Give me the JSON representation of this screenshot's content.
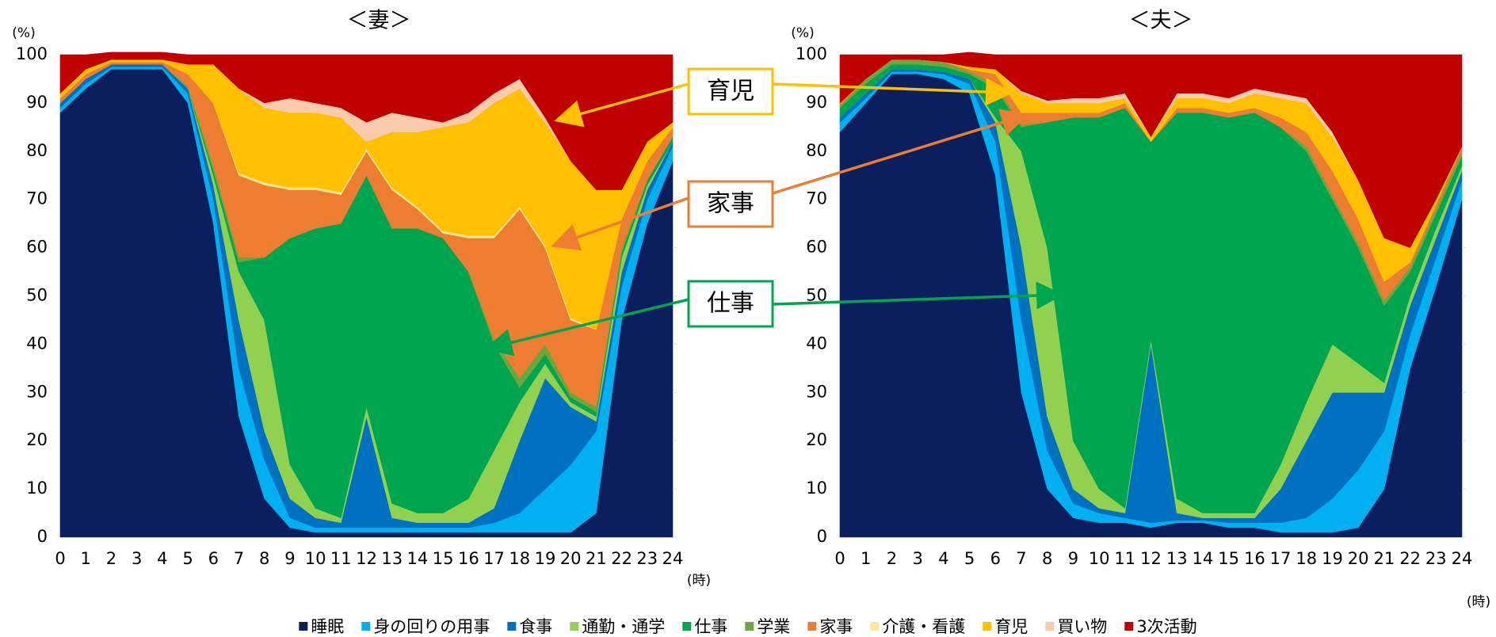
{
  "chart_data": [
    {
      "type": "stacked-area",
      "title": "＜妻＞",
      "ylabel": "(%)",
      "xlabel": "(時)",
      "x": [
        0,
        1,
        2,
        3,
        4,
        5,
        6,
        7,
        8,
        9,
        10,
        11,
        12,
        13,
        14,
        15,
        16,
        17,
        18,
        19,
        20,
        21,
        22,
        23,
        24
      ],
      "xlim": [
        0,
        24
      ],
      "xticks": [
        0,
        1,
        2,
        3,
        4,
        5,
        6,
        7,
        8,
        9,
        10,
        11,
        12,
        13,
        14,
        15,
        16,
        17,
        18,
        19,
        20,
        21,
        22,
        23,
        24
      ],
      "ylim": [
        0,
        100
      ],
      "yticks": [
        0,
        10,
        20,
        30,
        40,
        50,
        60,
        70,
        80,
        90,
        100
      ],
      "grid": false,
      "annotations": [
        "育児",
        "家事",
        "仕事"
      ],
      "series": [
        {
          "name": "睡眠",
          "color": "#0b1f5e",
          "values": [
            88,
            93,
            97,
            97,
            97,
            90,
            65,
            25,
            8,
            2,
            1,
            1,
            1,
            1,
            1,
            1,
            1,
            1,
            1,
            1,
            1,
            5,
            45,
            65,
            78
          ]
        },
        {
          "name": "身の回りの用事",
          "color": "#00b0f0",
          "values": [
            1,
            1,
            0.5,
            0.5,
            0.5,
            2,
            5,
            10,
            8,
            2,
            1,
            1,
            1,
            1,
            1,
            1,
            1,
            2,
            4,
            9,
            14,
            17,
            7,
            5,
            3
          ]
        },
        {
          "name": "食事",
          "color": "#0070c0",
          "values": [
            1,
            1,
            0.5,
            0.5,
            0.5,
            1,
            3,
            10,
            6,
            4,
            2,
            1,
            23,
            2,
            1,
            1,
            1,
            3,
            15,
            23,
            12,
            2,
            3,
            2,
            1
          ]
        },
        {
          "name": "通勤・通学",
          "color": "#92d050",
          "values": [
            0,
            0,
            0,
            0,
            0,
            0,
            2,
            10,
            23,
            7,
            2,
            1,
            2,
            3,
            2,
            2,
            5,
            12,
            8,
            3,
            1,
            1,
            3,
            1,
            0
          ]
        },
        {
          "name": "仕事",
          "color": "#00a64f",
          "values": [
            0,
            0,
            0,
            0,
            0,
            0,
            1,
            2,
            13,
            47,
            58,
            61,
            48,
            57,
            59,
            57,
            47,
            22,
            3,
            2,
            1,
            1,
            1,
            1,
            1
          ]
        },
        {
          "name": "学業",
          "color": "#6aa83f",
          "values": [
            0,
            0,
            0,
            0,
            0,
            0.5,
            1,
            1,
            0,
            0,
            0,
            0,
            0,
            0,
            0,
            0,
            0,
            1,
            2,
            2,
            1,
            1,
            1,
            0,
            0
          ]
        },
        {
          "name": "家事",
          "color": "#ed7d31",
          "values": [
            1,
            1,
            0.5,
            0.5,
            0.5,
            2.5,
            13,
            17,
            15,
            10,
            8,
            6,
            5,
            8,
            4,
            1,
            7,
            21,
            35,
            20,
            15,
            16,
            6,
            4,
            2
          ]
        },
        {
          "name": "介護・看護",
          "color": "#ffe699",
          "values": [
            0,
            0,
            0,
            0,
            0,
            0,
            0,
            0.5,
            0.5,
            0.5,
            0.5,
            0.5,
            0.5,
            0.5,
            0.5,
            0.5,
            0.5,
            0.5,
            0.5,
            0.5,
            0.5,
            0,
            0,
            0,
            0
          ]
        },
        {
          "name": "育児",
          "color": "#ffc000",
          "values": [
            1,
            1,
            0.5,
            0.5,
            0.5,
            2,
            8,
            17.5,
            15.5,
            15.5,
            15.5,
            15.5,
            1.5,
            11.5,
            15.5,
            21.5,
            23.5,
            27.5,
            24.5,
            25.5,
            32.5,
            29,
            6,
            4,
            1
          ]
        },
        {
          "name": "買い物",
          "color": "#f8cbad",
          "values": [
            0,
            0,
            0,
            0,
            0,
            0,
            0,
            0,
            1,
            3,
            2,
            2,
            4,
            4,
            3,
            1,
            2,
            2,
            2,
            1,
            0,
            0,
            0,
            0,
            0
          ]
        },
        {
          "name": "3次活動",
          "color": "#c00000",
          "values": [
            8,
            3,
            1.5,
            1.5,
            1.5,
            2,
            2,
            7,
            10,
            9,
            10,
            11,
            14,
            12,
            13,
            14,
            12,
            8,
            5,
            13,
            22,
            28,
            28,
            18,
            14
          ]
        }
      ]
    },
    {
      "type": "stacked-area",
      "title": "＜夫＞",
      "ylabel": "(%)",
      "xlabel": "(時)",
      "x": [
        0,
        1,
        2,
        3,
        4,
        5,
        6,
        7,
        8,
        9,
        10,
        11,
        12,
        13,
        14,
        15,
        16,
        17,
        18,
        19,
        20,
        21,
        22,
        23,
        24
      ],
      "xlim": [
        0,
        24
      ],
      "xticks": [
        0,
        1,
        2,
        3,
        4,
        5,
        6,
        7,
        8,
        9,
        10,
        11,
        12,
        13,
        14,
        15,
        16,
        17,
        18,
        19,
        20,
        21,
        22,
        23,
        24
      ],
      "ylim": [
        0,
        100
      ],
      "yticks": [
        0,
        10,
        20,
        30,
        40,
        50,
        60,
        70,
        80,
        90,
        100
      ],
      "grid": false,
      "series": [
        {
          "values": [
            84,
            90,
            96,
            96,
            95,
            92,
            75,
            30,
            10,
            4,
            3,
            3,
            2,
            3,
            3,
            2,
            2,
            1,
            1,
            1,
            2,
            10,
            35,
            52,
            70
          ]
        },
        {
          "values": [
            2,
            1,
            0.5,
            0.5,
            1,
            2,
            7,
            15,
            8,
            3,
            2,
            1,
            1,
            0.5,
            0.5,
            1,
            1,
            2,
            3,
            7,
            12,
            12,
            7,
            6,
            4
          ]
        },
        {
          "values": [
            1,
            1,
            0.5,
            0.5,
            0.5,
            1,
            4,
            15,
            7,
            3,
            1,
            1,
            37,
            1.5,
            0.5,
            1,
            1,
            7,
            16,
            22,
            16,
            8,
            6,
            4,
            2
          ]
        },
        {
          "values": [
            0,
            0,
            0,
            0,
            0,
            0,
            1,
            20,
            35,
            10,
            4,
            1,
            1,
            3,
            1,
            1,
            1,
            5,
            8,
            10,
            6,
            2,
            2,
            2,
            1
          ]
        },
        {
          "values": [
            2,
            2,
            1,
            1,
            1,
            1,
            6,
            5,
            26,
            67,
            77,
            83,
            41,
            80,
            83,
            82,
            83,
            70,
            52,
            30,
            24,
            16,
            5,
            3,
            2
          ]
        },
        {
          "values": [
            0.5,
            1,
            1,
            1,
            1,
            0.5,
            1,
            0.5,
            0,
            0,
            0,
            0,
            0,
            0,
            0,
            0,
            0,
            0,
            1,
            1,
            1,
            1,
            1,
            1,
            1
          ]
        },
        {
          "values": [
            0.5,
            0,
            0,
            0,
            0,
            0.5,
            2,
            2.5,
            2,
            1,
            1,
            1,
            0,
            1,
            1,
            1,
            1,
            2,
            3,
            5,
            5,
            4,
            1,
            1,
            1
          ]
        },
        {
          "values": [
            0,
            0,
            0,
            0,
            0,
            0,
            0,
            0,
            0,
            0,
            0,
            0,
            0,
            0,
            0,
            0,
            0,
            0,
            0,
            0,
            0,
            0,
            0,
            0,
            0
          ]
        },
        {
          "values": [
            0,
            0,
            0,
            0,
            0,
            0.5,
            1,
            4,
            2,
            2,
            2,
            1,
            1,
            2,
            2,
            2,
            3,
            4,
            6,
            7,
            8,
            9,
            3,
            1,
            0
          ]
        },
        {
          "values": [
            0,
            0,
            0,
            0,
            0,
            0,
            0,
            0.5,
            0.5,
            1,
            1,
            1,
            0,
            1,
            1,
            1,
            1,
            1,
            1,
            1,
            0,
            0,
            0,
            0,
            0
          ]
        },
        {
          "values": [
            10,
            5,
            1,
            1,
            1.5,
            3,
            3,
            7.5,
            9.5,
            9,
            9,
            8,
            17,
            8,
            8,
            9,
            7,
            8,
            9,
            16,
            26,
            38,
            40,
            30,
            19
          ]
        }
      ]
    }
  ]
}
